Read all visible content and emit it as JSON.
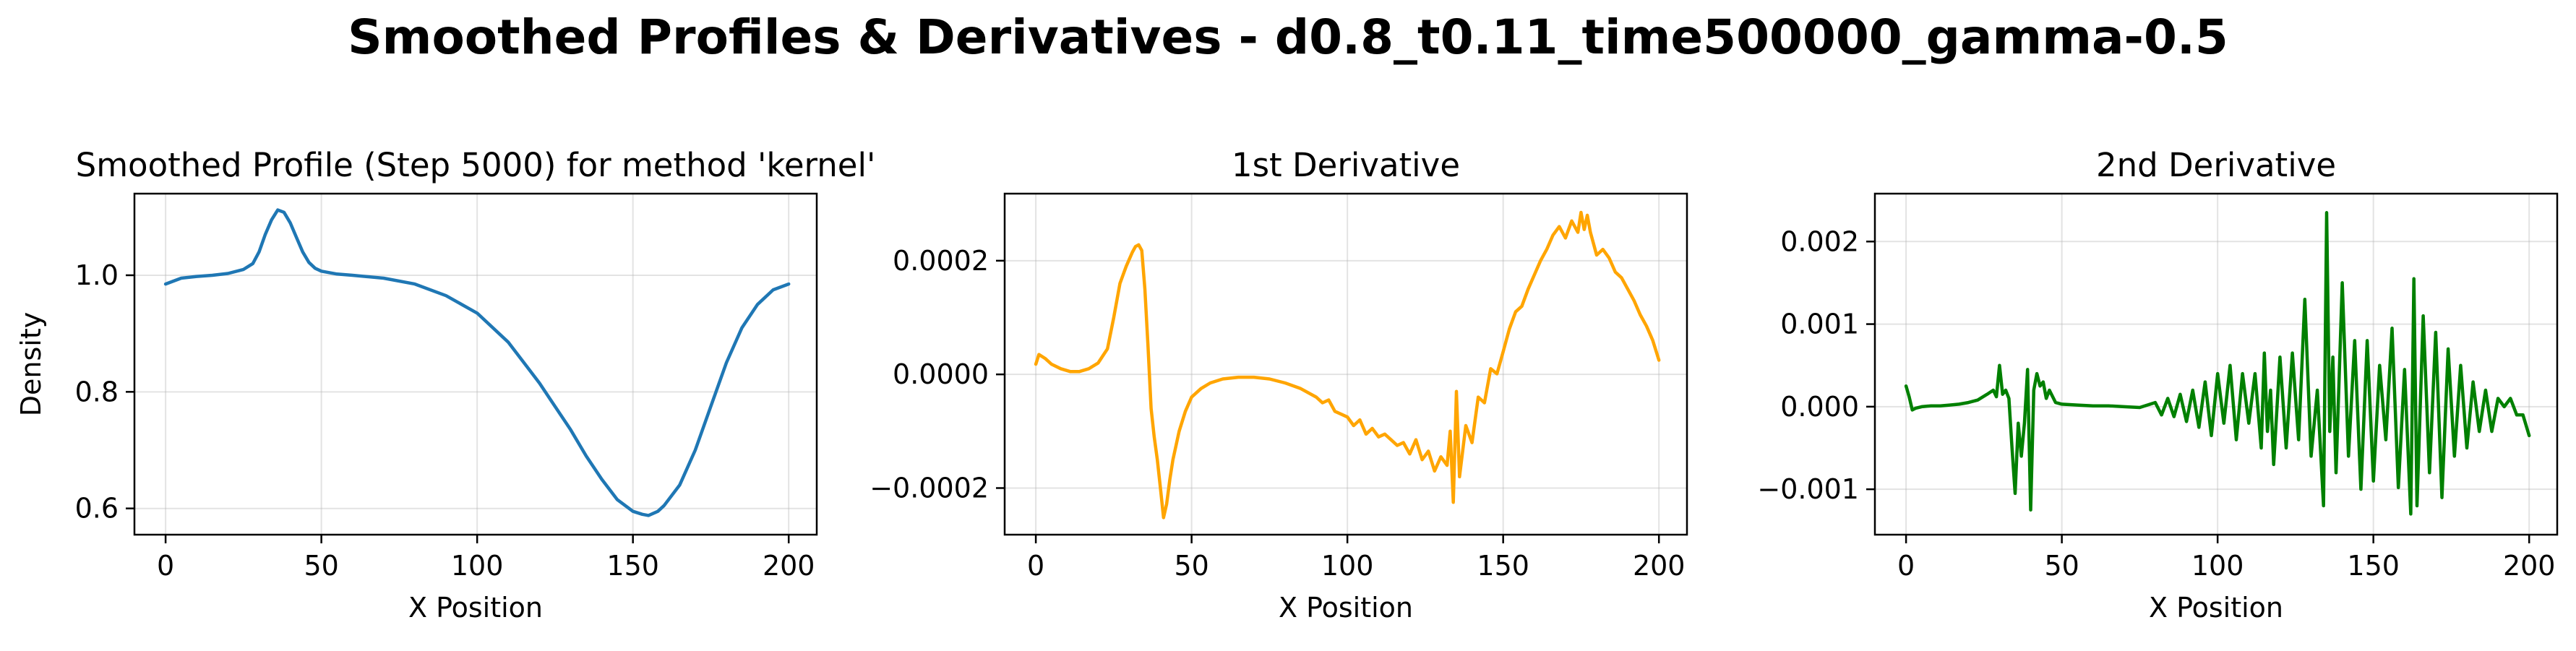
{
  "figure": {
    "suptitle": "Smoothed Profiles & Derivatives - d0.8_t0.11_time500000_gamma-0.5"
  },
  "chart_data": [
    {
      "type": "line",
      "title": "Smoothed Profile (Step 5000) for method 'kernel'",
      "xlabel": "X Position",
      "ylabel": "Density",
      "xlim": [
        -10,
        209
      ],
      "ylim": [
        0.555,
        1.14
      ],
      "xticks": [
        0,
        50,
        100,
        150,
        200
      ],
      "xtick_labels": [
        "0",
        "50",
        "100",
        "150",
        "200"
      ],
      "yticks": [
        0.6,
        0.8,
        1.0
      ],
      "ytick_labels": [
        "0.6",
        "0.8",
        "1.0"
      ],
      "grid": true,
      "color": "#1f77b4",
      "series": [
        {
          "x": [
            0,
            5,
            10,
            15,
            20,
            25,
            28,
            30,
            32,
            34,
            36,
            38,
            40,
            42,
            44,
            46,
            48,
            50,
            55,
            60,
            70,
            80,
            90,
            100,
            110,
            120,
            125,
            130,
            135,
            140,
            145,
            150,
            153,
            155,
            158,
            160,
            165,
            170,
            175,
            180,
            185,
            190,
            195,
            200
          ],
          "y": [
            0.985,
            0.995,
            0.998,
            1.0,
            1.003,
            1.01,
            1.02,
            1.04,
            1.07,
            1.095,
            1.112,
            1.108,
            1.09,
            1.065,
            1.04,
            1.022,
            1.012,
            1.007,
            1.002,
            1.0,
            0.995,
            0.985,
            0.965,
            0.935,
            0.885,
            0.815,
            0.775,
            0.735,
            0.69,
            0.65,
            0.615,
            0.595,
            0.59,
            0.588,
            0.595,
            0.605,
            0.64,
            0.7,
            0.775,
            0.85,
            0.91,
            0.95,
            0.975,
            0.985
          ]
        }
      ]
    },
    {
      "type": "line",
      "title": "1st Derivative",
      "xlabel": "X Position",
      "ylabel": "",
      "xlim": [
        -10,
        209
      ],
      "ylim": [
        -0.000282,
        0.000318
      ],
      "xticks": [
        0,
        50,
        100,
        150,
        200
      ],
      "xtick_labels": [
        "0",
        "50",
        "100",
        "150",
        "200"
      ],
      "yticks": [
        -0.0002,
        0.0,
        0.0002
      ],
      "ytick_labels": [
        "−0.0002",
        "0.0000",
        "0.0002"
      ],
      "grid": true,
      "color": "#ffa500",
      "series": [
        {
          "x": [
            0,
            1,
            3,
            5,
            8,
            11,
            14,
            17,
            20,
            23,
            25,
            27,
            29,
            31,
            32,
            33,
            34,
            35,
            36,
            37,
            38,
            39,
            40,
            41,
            42,
            43,
            44,
            46,
            48,
            50,
            53,
            56,
            60,
            65,
            70,
            75,
            80,
            85,
            90,
            92,
            94,
            96,
            98,
            100,
            102,
            104,
            106,
            108,
            110,
            112,
            114,
            116,
            118,
            120,
            122,
            124,
            126,
            128,
            130,
            132,
            133,
            134,
            135,
            136,
            138,
            140,
            142,
            144,
            146,
            148,
            150,
            152,
            154,
            156,
            158,
            160,
            162,
            164,
            166,
            168,
            170,
            172,
            174,
            175,
            176,
            177,
            178,
            180,
            182,
            184,
            186,
            188,
            190,
            192,
            194,
            196,
            198,
            200
          ],
          "y": [
            1.8e-05,
            3.5e-05,
            2.8e-05,
            1.8e-05,
            1e-05,
            5e-06,
            5e-06,
            1e-05,
            2e-05,
            4.5e-05,
            0.0001,
            0.00016,
            0.00019,
            0.000215,
            0.000225,
            0.000228,
            0.000218,
            0.00015,
            5e-05,
            -6e-05,
            -0.00011,
            -0.00015,
            -0.0002,
            -0.000252,
            -0.000228,
            -0.000185,
            -0.00015,
            -0.0001,
            -6.5e-05,
            -4e-05,
            -2.5e-05,
            -1.5e-05,
            -8e-06,
            -5e-06,
            -5e-06,
            -8e-06,
            -1.5e-05,
            -2.5e-05,
            -4e-05,
            -5e-05,
            -4.5e-05,
            -6.5e-05,
            -7e-05,
            -7.5e-05,
            -9e-05,
            -8e-05,
            -0.000105,
            -9.5e-05,
            -0.00011,
            -0.000105,
            -0.000115,
            -0.000125,
            -0.00012,
            -0.00014,
            -0.000115,
            -0.00015,
            -0.000135,
            -0.00017,
            -0.000145,
            -0.00016,
            -0.0001,
            -0.000225,
            -3e-05,
            -0.00018,
            -9e-05,
            -0.00012,
            -4e-05,
            -5e-05,
            1e-05,
            1e-06,
            4e-05,
            8e-05,
            0.00011,
            0.00012,
            0.00015,
            0.000175,
            0.0002,
            0.00022,
            0.000245,
            0.00026,
            0.00024,
            0.00027,
            0.00025,
            0.000285,
            0.000255,
            0.00028,
            0.00025,
            0.00021,
            0.00022,
            0.000205,
            0.00018,
            0.00017,
            0.00015,
            0.00013,
            0.000105,
            8.5e-05,
            6e-05,
            2.5e-05
          ]
        }
      ]
    },
    {
      "type": "line",
      "title": "2nd Derivative",
      "xlabel": "X Position",
      "ylabel": "",
      "xlim": [
        -10,
        209
      ],
      "ylim": [
        -0.00155,
        0.00258
      ],
      "xticks": [
        0,
        50,
        100,
        150,
        200
      ],
      "xtick_labels": [
        "0",
        "50",
        "100",
        "150",
        "200"
      ],
      "yticks": [
        -0.001,
        0.0,
        0.001,
        0.002
      ],
      "ytick_labels": [
        "−0.001",
        "0.000",
        "0.001",
        "0.002"
      ],
      "grid": true,
      "color": "#008000",
      "series": [
        {
          "x": [
            0,
            1,
            2,
            3,
            5,
            8,
            11,
            14,
            17,
            20,
            23,
            26,
            28,
            29,
            30,
            31,
            32,
            33,
            34,
            35,
            36,
            37,
            38,
            39,
            40,
            41,
            42,
            43,
            44,
            45,
            46,
            48,
            50,
            55,
            60,
            65,
            70,
            75,
            80,
            82,
            84,
            86,
            88,
            90,
            92,
            94,
            96,
            98,
            100,
            102,
            104,
            106,
            108,
            110,
            112,
            114,
            115,
            116,
            117,
            118,
            120,
            122,
            124,
            126,
            128,
            130,
            132,
            134,
            135,
            136,
            137,
            138,
            140,
            142,
            144,
            146,
            148,
            150,
            152,
            154,
            156,
            158,
            160,
            162,
            163,
            164,
            166,
            168,
            170,
            172,
            174,
            176,
            178,
            180,
            182,
            184,
            186,
            188,
            190,
            192,
            194,
            196,
            198,
            200
          ],
          "y": [
            0.00025,
            0.00012,
            -4e-05,
            -2e-05,
            0.0,
            1e-05,
            1e-05,
            2e-05,
            3e-05,
            5e-05,
            8e-05,
            0.00015,
            0.0002,
            0.00012,
            0.0005,
            0.00015,
            0.0002,
            0.0001,
            -0.0005,
            -0.00105,
            -0.0002,
            -0.0006,
            -0.0002,
            0.00045,
            -0.00125,
            0.0002,
            0.0004,
            0.00025,
            0.0003,
            0.0001,
            0.0002,
            5e-05,
            3e-05,
            2e-05,
            1e-05,
            1e-05,
            0.0,
            -1e-05,
            5e-05,
            -0.0001,
            0.0001,
            -0.00012,
            0.00015,
            -0.00018,
            0.0002,
            -0.00025,
            0.0003,
            -0.00035,
            0.0004,
            -0.0002,
            0.0005,
            -0.0004,
            0.0004,
            -0.0002,
            0.0004,
            -0.0005,
            0.00065,
            -0.0003,
            0.0002,
            -0.0007,
            0.0006,
            -0.0005,
            0.00065,
            -0.0004,
            0.0013,
            -0.0006,
            0.0002,
            -0.0012,
            0.00235,
            -0.0003,
            0.0006,
            -0.0008,
            0.0015,
            -0.0006,
            0.0008,
            -0.001,
            0.0008,
            -0.0009,
            0.0005,
            -0.0004,
            0.00095,
            -0.00098,
            0.00045,
            -0.0013,
            0.00155,
            -0.0012,
            0.0011,
            -0.0008,
            0.0009,
            -0.0011,
            0.0007,
            -0.0006,
            0.0005,
            -0.0005,
            0.0003,
            -0.0003,
            0.0002,
            -0.0003,
            0.0001,
            0.0,
            0.0001,
            -0.0001,
            -0.0001,
            -0.00035
          ]
        }
      ]
    }
  ]
}
